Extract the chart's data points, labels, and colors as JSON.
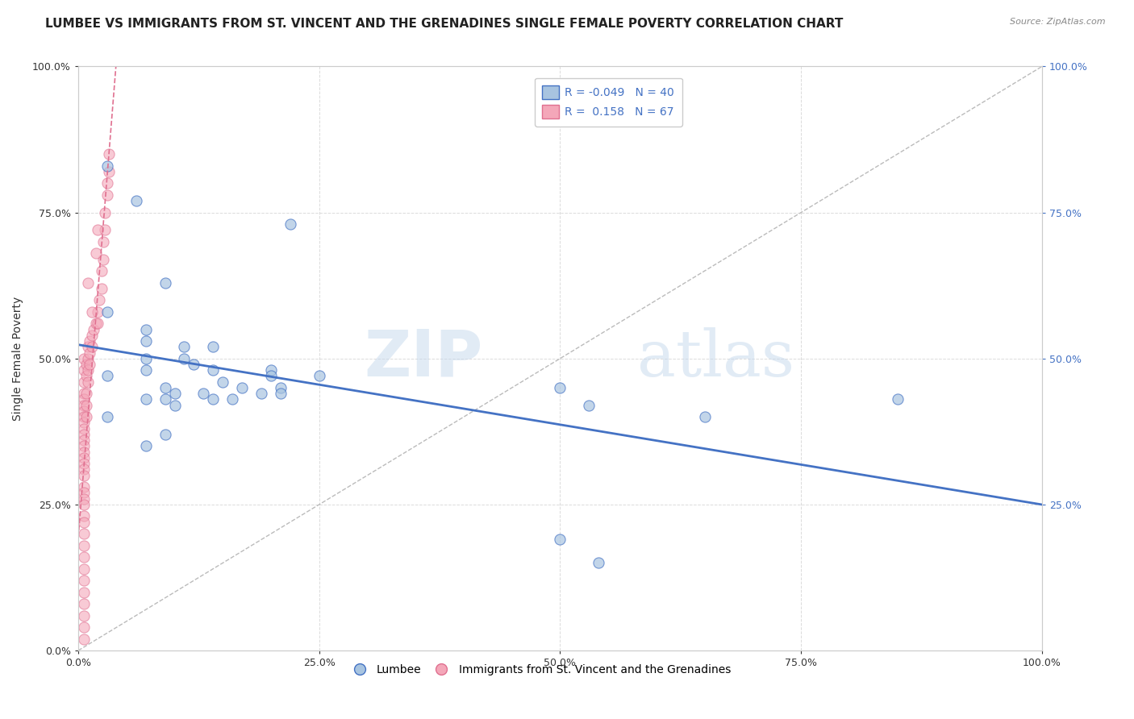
{
  "title": "LUMBEE VS IMMIGRANTS FROM ST. VINCENT AND THE GRENADINES SINGLE FEMALE POVERTY CORRELATION CHART",
  "source": "Source: ZipAtlas.com",
  "ylabel_label": "Single Female Poverty",
  "xlim": [
    0,
    1.0
  ],
  "ylim": [
    0,
    1.0
  ],
  "xtick_labels": [
    "0.0%",
    "25.0%",
    "50.0%",
    "75.0%",
    "100.0%"
  ],
  "xtick_vals": [
    0.0,
    0.25,
    0.5,
    0.75,
    1.0
  ],
  "ytick_labels": [
    "0.0%",
    "25.0%",
    "50.0%",
    "75.0%",
    "100.0%"
  ],
  "ytick_vals": [
    0.0,
    0.25,
    0.5,
    0.75,
    1.0
  ],
  "right_ytick_labels": [
    "100.0%",
    "75.0%",
    "50.0%",
    "25.0%"
  ],
  "right_ytick_vals": [
    1.0,
    0.75,
    0.5,
    0.25
  ],
  "lumbee_R": -0.049,
  "lumbee_N": 40,
  "immigrants_R": 0.158,
  "immigrants_N": 67,
  "lumbee_color": "#a8c4e0",
  "immigrants_color": "#f4a7b9",
  "lumbee_line_color": "#4472c4",
  "immigrants_line_color": "#e07090",
  "watermark_zip": "ZIP",
  "watermark_atlas": "atlas",
  "lumbee_scatter": [
    [
      0.03,
      0.83
    ],
    [
      0.06,
      0.77
    ],
    [
      0.22,
      0.73
    ],
    [
      0.09,
      0.63
    ],
    [
      0.03,
      0.58
    ],
    [
      0.07,
      0.55
    ],
    [
      0.07,
      0.53
    ],
    [
      0.11,
      0.52
    ],
    [
      0.14,
      0.52
    ],
    [
      0.11,
      0.5
    ],
    [
      0.07,
      0.5
    ],
    [
      0.12,
      0.49
    ],
    [
      0.07,
      0.48
    ],
    [
      0.14,
      0.48
    ],
    [
      0.2,
      0.48
    ],
    [
      0.2,
      0.47
    ],
    [
      0.03,
      0.47
    ],
    [
      0.25,
      0.47
    ],
    [
      0.15,
      0.46
    ],
    [
      0.09,
      0.45
    ],
    [
      0.17,
      0.45
    ],
    [
      0.21,
      0.45
    ],
    [
      0.1,
      0.44
    ],
    [
      0.13,
      0.44
    ],
    [
      0.19,
      0.44
    ],
    [
      0.21,
      0.44
    ],
    [
      0.09,
      0.43
    ],
    [
      0.14,
      0.43
    ],
    [
      0.07,
      0.43
    ],
    [
      0.16,
      0.43
    ],
    [
      0.1,
      0.42
    ],
    [
      0.03,
      0.4
    ],
    [
      0.09,
      0.37
    ],
    [
      0.07,
      0.35
    ],
    [
      0.5,
      0.45
    ],
    [
      0.53,
      0.42
    ],
    [
      0.65,
      0.4
    ],
    [
      0.85,
      0.43
    ],
    [
      0.5,
      0.19
    ],
    [
      0.54,
      0.15
    ]
  ],
  "immigrants_scatter": [
    [
      0.006,
      0.5
    ],
    [
      0.006,
      0.48
    ],
    [
      0.006,
      0.46
    ],
    [
      0.006,
      0.44
    ],
    [
      0.006,
      0.43
    ],
    [
      0.006,
      0.42
    ],
    [
      0.006,
      0.41
    ],
    [
      0.006,
      0.4
    ],
    [
      0.006,
      0.39
    ],
    [
      0.006,
      0.38
    ],
    [
      0.006,
      0.37
    ],
    [
      0.006,
      0.36
    ],
    [
      0.006,
      0.35
    ],
    [
      0.006,
      0.34
    ],
    [
      0.006,
      0.33
    ],
    [
      0.006,
      0.32
    ],
    [
      0.006,
      0.31
    ],
    [
      0.006,
      0.3
    ],
    [
      0.006,
      0.28
    ],
    [
      0.006,
      0.27
    ],
    [
      0.006,
      0.26
    ],
    [
      0.006,
      0.25
    ],
    [
      0.006,
      0.23
    ],
    [
      0.006,
      0.22
    ],
    [
      0.006,
      0.2
    ],
    [
      0.006,
      0.18
    ],
    [
      0.006,
      0.16
    ],
    [
      0.006,
      0.14
    ],
    [
      0.006,
      0.12
    ],
    [
      0.006,
      0.1
    ],
    [
      0.006,
      0.08
    ],
    [
      0.006,
      0.06
    ],
    [
      0.006,
      0.04
    ],
    [
      0.008,
      0.49
    ],
    [
      0.008,
      0.47
    ],
    [
      0.008,
      0.44
    ],
    [
      0.008,
      0.42
    ],
    [
      0.008,
      0.4
    ],
    [
      0.01,
      0.52
    ],
    [
      0.01,
      0.5
    ],
    [
      0.01,
      0.48
    ],
    [
      0.01,
      0.46
    ],
    [
      0.012,
      0.53
    ],
    [
      0.012,
      0.51
    ],
    [
      0.012,
      0.49
    ],
    [
      0.014,
      0.54
    ],
    [
      0.014,
      0.52
    ],
    [
      0.016,
      0.55
    ],
    [
      0.018,
      0.56
    ],
    [
      0.02,
      0.58
    ],
    [
      0.02,
      0.56
    ],
    [
      0.022,
      0.6
    ],
    [
      0.024,
      0.62
    ],
    [
      0.024,
      0.65
    ],
    [
      0.026,
      0.67
    ],
    [
      0.026,
      0.7
    ],
    [
      0.028,
      0.72
    ],
    [
      0.028,
      0.75
    ],
    [
      0.03,
      0.78
    ],
    [
      0.03,
      0.8
    ],
    [
      0.032,
      0.82
    ],
    [
      0.032,
      0.85
    ],
    [
      0.018,
      0.68
    ],
    [
      0.02,
      0.72
    ],
    [
      0.01,
      0.63
    ],
    [
      0.014,
      0.58
    ],
    [
      0.006,
      0.02
    ]
  ],
  "title_fontsize": 11,
  "axis_fontsize": 9,
  "legend_fontsize": 10,
  "background_color": "#ffffff",
  "grid_color": "#cccccc"
}
